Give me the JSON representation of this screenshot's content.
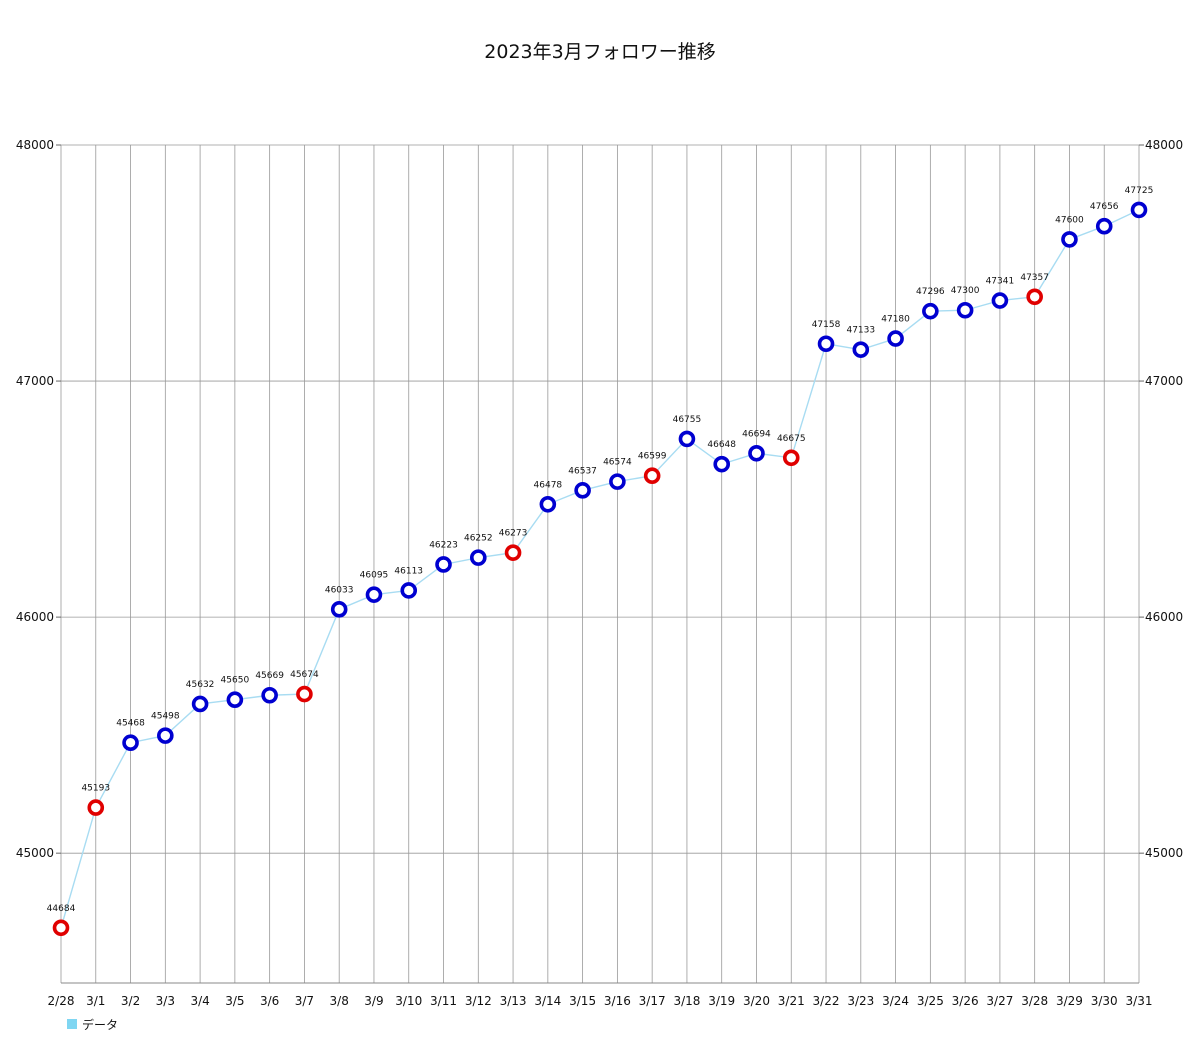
{
  "chart_data": {
    "type": "line",
    "title": "2023年3月フォロワー推移",
    "categories": [
      "2/28",
      "3/1",
      "3/2",
      "3/3",
      "3/4",
      "3/5",
      "3/6",
      "3/7",
      "3/8",
      "3/9",
      "3/10",
      "3/11",
      "3/12",
      "3/13",
      "3/14",
      "3/15",
      "3/16",
      "3/17",
      "3/18",
      "3/19",
      "3/20",
      "3/21",
      "3/22",
      "3/23",
      "3/24",
      "3/25",
      "3/26",
      "3/27",
      "3/28",
      "3/29",
      "3/30",
      "3/31"
    ],
    "series": [
      {
        "name": "データ",
        "values": [
          44684,
          45193,
          45468,
          45498,
          45632,
          45650,
          45669,
          45674,
          46033,
          46095,
          46113,
          46223,
          46252,
          46273,
          46478,
          46537,
          46574,
          46599,
          46755,
          46648,
          46694,
          46675,
          47158,
          47133,
          47180,
          47296,
          47300,
          47341,
          47357,
          47600,
          47656,
          47725
        ],
        "highlighted": [
          "2/28",
          "3/1",
          "3/7",
          "3/13",
          "3/17",
          "3/21",
          "3/28"
        ]
      }
    ],
    "yticks": [
      45000,
      46000,
      47000,
      48000
    ],
    "ylim": [
      44450,
      48000
    ],
    "grid": true,
    "legend": "bottom-left",
    "colors": {
      "line": "#a8dcf2",
      "marker": "#0000d0",
      "marker_highlight": "#e00000",
      "legend_swatch": "#7fd6f2",
      "grid": "#999999"
    }
  }
}
